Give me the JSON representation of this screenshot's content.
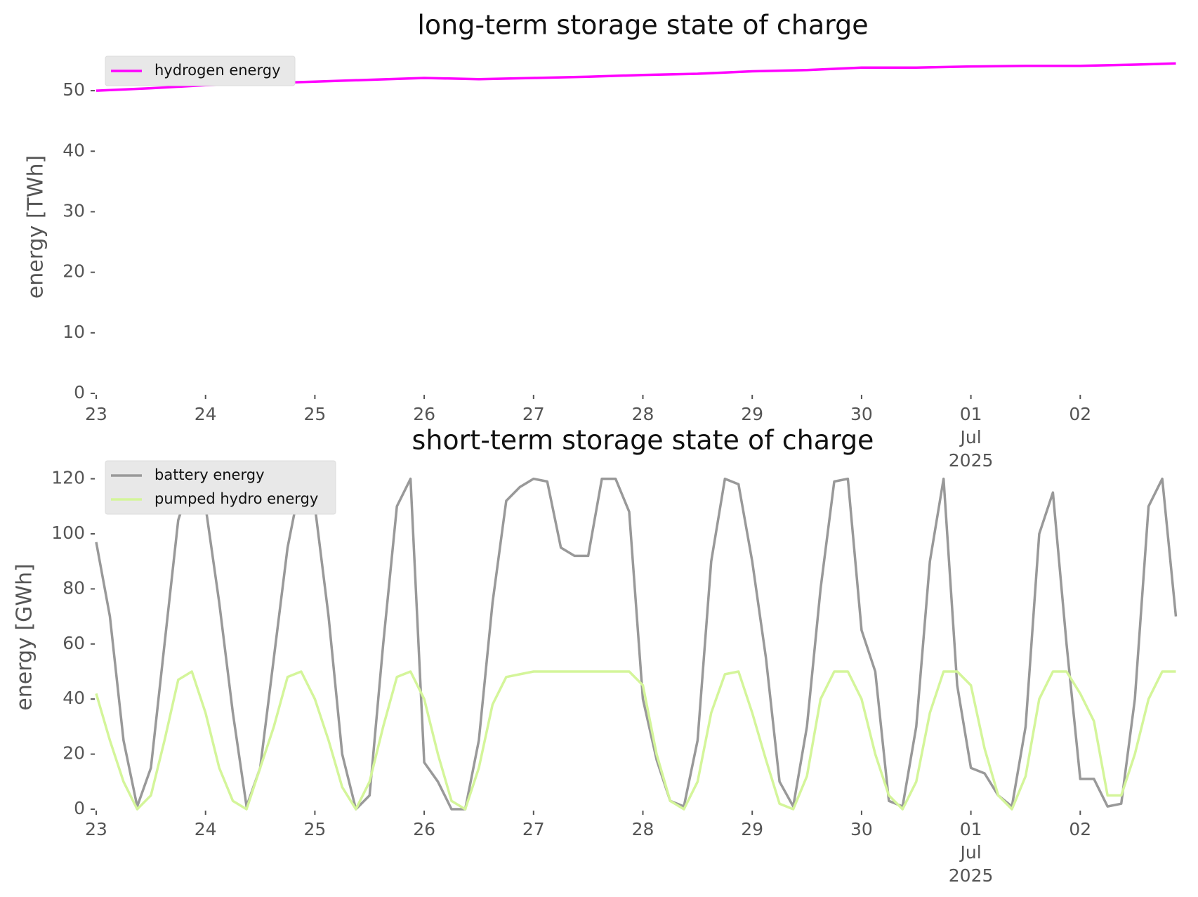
{
  "chart_data": [
    {
      "type": "line",
      "title": "long-term storage state of charge",
      "ylabel": "energy [TWh]",
      "x": [
        0,
        12,
        24,
        36,
        48,
        60,
        72,
        84,
        96,
        108,
        120,
        132,
        144,
        156,
        168,
        180,
        192,
        204,
        216,
        228,
        237
      ],
      "series": [
        {
          "name": "hydrogen energy",
          "color": "#ff00ff",
          "values": [
            50,
            50.4,
            50.9,
            51.2,
            51.5,
            51.8,
            52.1,
            51.9,
            52.1,
            52.3,
            52.6,
            52.8,
            53.2,
            53.4,
            53.8,
            53.8,
            54.0,
            54.1,
            54.1,
            54.3,
            54.5
          ]
        }
      ],
      "xlim": [
        0,
        240
      ],
      "ylim": [
        0,
        55
      ],
      "xticks": [
        {
          "value": 0,
          "label": "23"
        },
        {
          "value": 24,
          "label": "24"
        },
        {
          "value": 48,
          "label": "25"
        },
        {
          "value": 72,
          "label": "26"
        },
        {
          "value": 96,
          "label": "27"
        },
        {
          "value": 120,
          "label": "28"
        },
        {
          "value": 144,
          "label": "29"
        },
        {
          "value": 168,
          "label": "30"
        },
        {
          "value": 192,
          "label": "01\nJul\n2025"
        },
        {
          "value": 216,
          "label": "02"
        }
      ],
      "yticks": [
        0,
        10,
        20,
        30,
        40,
        50
      ],
      "legend": "upper left"
    },
    {
      "type": "line",
      "title": "short-term storage state of charge",
      "ylabel": "energy [GWh]",
      "x": [
        0,
        3,
        6,
        9,
        12,
        15,
        18,
        21,
        24,
        27,
        30,
        33,
        36,
        39,
        42,
        45,
        48,
        51,
        54,
        57,
        60,
        63,
        66,
        69,
        72,
        75,
        78,
        81,
        84,
        87,
        90,
        93,
        96,
        99,
        102,
        105,
        108,
        111,
        114,
        117,
        120,
        123,
        126,
        129,
        132,
        135,
        138,
        141,
        144,
        147,
        150,
        153,
        156,
        159,
        162,
        165,
        168,
        171,
        174,
        177,
        180,
        183,
        186,
        189,
        192,
        195,
        198,
        201,
        204,
        207,
        210,
        213,
        216,
        219,
        222,
        225,
        228,
        231,
        234,
        237
      ],
      "series": [
        {
          "name": "battery energy",
          "color": "#999999",
          "values": [
            97,
            70,
            25,
            1,
            15,
            60,
            105,
            120,
            110,
            75,
            35,
            1,
            15,
            55,
            95,
            120,
            110,
            70,
            20,
            0,
            5,
            60,
            110,
            120,
            17,
            10,
            0,
            0,
            25,
            75,
            112,
            117,
            120,
            119,
            95,
            92,
            92,
            120,
            120,
            108,
            40,
            18,
            3,
            1,
            25,
            90,
            120,
            118,
            90,
            55,
            10,
            1,
            30,
            80,
            119,
            120,
            65,
            50,
            3,
            1,
            30,
            90,
            120,
            45,
            15,
            13,
            5,
            1,
            30,
            100,
            115,
            60,
            11,
            11,
            1,
            2,
            40,
            110,
            120,
            70
          ]
        },
        {
          "name": "pumped hydro energy",
          "color": "#d4f59a",
          "values": [
            42,
            25,
            10,
            0,
            5,
            25,
            47,
            50,
            35,
            15,
            3,
            0,
            15,
            30,
            48,
            50,
            40,
            25,
            8,
            0,
            10,
            30,
            48,
            50,
            40,
            20,
            3,
            0,
            15,
            38,
            48,
            49,
            50,
            50,
            50,
            50,
            50,
            50,
            50,
            50,
            45,
            20,
            3,
            0,
            10,
            35,
            49,
            50,
            35,
            18,
            2,
            0,
            12,
            40,
            50,
            50,
            40,
            20,
            5,
            0,
            10,
            35,
            50,
            50,
            45,
            22,
            5,
            0,
            12,
            40,
            50,
            50,
            42,
            32,
            5,
            5,
            20,
            40,
            50,
            50
          ]
        }
      ],
      "xlim": [
        0,
        240
      ],
      "ylim": [
        0,
        125
      ],
      "xticks": [
        {
          "value": 0,
          "label": "23"
        },
        {
          "value": 24,
          "label": "24"
        },
        {
          "value": 48,
          "label": "25"
        },
        {
          "value": 72,
          "label": "26"
        },
        {
          "value": 96,
          "label": "27"
        },
        {
          "value": 120,
          "label": "28"
        },
        {
          "value": 144,
          "label": "29"
        },
        {
          "value": 168,
          "label": "30"
        },
        {
          "value": 192,
          "label": "01\nJul\n2025"
        },
        {
          "value": 216,
          "label": "02"
        }
      ],
      "yticks": [
        0,
        20,
        40,
        60,
        80,
        100,
        120
      ],
      "legend": "upper left"
    }
  ]
}
